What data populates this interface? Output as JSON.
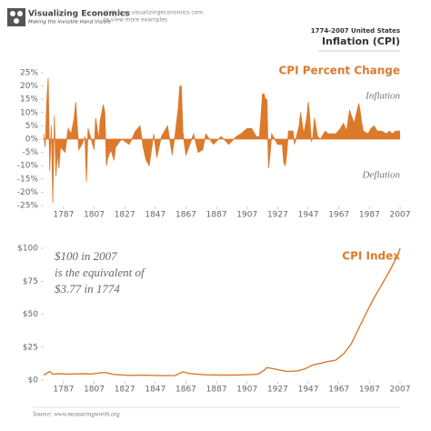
{
  "header": {
    "logo_title": "Visualizing Economics",
    "logo_subtitle": "Making the Invisible Hand Visible",
    "visit_line1": "Visit www.visualizingeconomics.com",
    "visit_line2": "to view more examples",
    "subtitle": "1774-2007 United States",
    "title": "Inflation (CPI)"
  },
  "chart_data": [
    {
      "type": "area",
      "title": "CPI Percent Change",
      "annotations": [
        "Inflation",
        "Deflation"
      ],
      "color": "#dc7a2c",
      "x": [
        1774,
        1775,
        1776,
        1777,
        1778,
        1779,
        1780,
        1781,
        1782,
        1783,
        1784,
        1785,
        1788,
        1790,
        1792,
        1794,
        1795,
        1796,
        1797,
        1799,
        1801,
        1802,
        1803,
        1805,
        1807,
        1808,
        1810,
        1811,
        1813,
        1814,
        1815,
        1816,
        1818,
        1820,
        1821,
        1825,
        1830,
        1834,
        1837,
        1839,
        1841,
        1843,
        1846,
        1848,
        1851,
        1853,
        1855,
        1858,
        1860,
        1862,
        1863,
        1864,
        1865,
        1866,
        1867,
        1869,
        1872,
        1875,
        1878,
        1880,
        1885,
        1890,
        1895,
        1900,
        1903,
        1907,
        1910,
        1913,
        1915,
        1916,
        1917,
        1918,
        1919,
        1920,
        1921,
        1922,
        1923,
        1927,
        1930,
        1931,
        1932,
        1933,
        1934,
        1937,
        1938,
        1941,
        1942,
        1943,
        1944,
        1946,
        1947,
        1948,
        1949,
        1950,
        1951,
        1953,
        1955,
        1958,
        1960,
        1965,
        1968,
        1970,
        1972,
        1974,
        1975,
        1977,
        1979,
        1980,
        1981,
        1982,
        1983,
        1986,
        1988,
        1990,
        1992,
        1995,
        1998,
        2000,
        2002,
        2004,
        2005,
        2007
      ],
      "values": [
        2,
        -3,
        14,
        23,
        -12,
        5,
        -24,
        9,
        -14,
        -5,
        -11,
        -3,
        -5,
        4,
        2,
        8,
        14,
        5,
        -4,
        -2,
        1,
        -16,
        4,
        0,
        -4,
        8,
        0,
        7,
        13,
        10,
        -10,
        -7,
        -4,
        -8,
        -3,
        0,
        -2,
        3,
        5,
        -3,
        -8,
        -10,
        2,
        -7,
        1,
        3,
        5,
        -6,
        2,
        12,
        20,
        20,
        3,
        -2,
        -6,
        -3,
        2,
        -5,
        -4,
        2,
        -2,
        1,
        -2,
        1,
        2,
        4,
        4,
        1,
        1,
        8,
        17,
        17,
        15,
        15,
        -11,
        -6,
        2,
        -2,
        -2,
        -9,
        -10,
        -5,
        3,
        3,
        -2,
        5,
        10,
        6,
        2,
        8,
        14,
        8,
        -1,
        1,
        8,
        1,
        0,
        3,
        2,
        2,
        4,
        6,
        3,
        11,
        9,
        6,
        11,
        13.5,
        10,
        6,
        3,
        2,
        4,
        5,
        3,
        3,
        2,
        3,
        2,
        3,
        3,
        3
      ],
      "xlim": [
        1774,
        2007
      ],
      "ylim": [
        -25,
        25
      ],
      "xticks": [
        1787,
        1807,
        1827,
        1847,
        1867,
        1887,
        1907,
        1927,
        1947,
        1967,
        1987,
        2007
      ],
      "yticks": [
        {
          "value": 25,
          "label": "25%"
        },
        {
          "value": 20,
          "label": "20%"
        },
        {
          "value": 15,
          "label": "15%"
        },
        {
          "value": 10,
          "label": "10%"
        },
        {
          "value": 5,
          "label": "5%"
        },
        {
          "value": 0,
          "label": "0%"
        },
        {
          "value": -5,
          "label": "-5%"
        },
        {
          "value": -10,
          "label": "-10%"
        },
        {
          "value": -15,
          "label": "-15%"
        },
        {
          "value": -20,
          "label": "-20%"
        },
        {
          "value": -25,
          "label": "-25%"
        }
      ]
    },
    {
      "type": "line",
      "title": "CPI Index",
      "annotations": [
        "$100 in 2007",
        "is the equivalent of",
        "$3.77 in 1774"
      ],
      "color": "#dc7a2c",
      "x": [
        1774,
        1778,
        1780,
        1785,
        1790,
        1800,
        1805,
        1814,
        1820,
        1830,
        1840,
        1850,
        1860,
        1865,
        1870,
        1880,
        1890,
        1900,
        1910,
        1914,
        1918,
        1920,
        1925,
        1933,
        1940,
        1945,
        1950,
        1955,
        1960,
        1965,
        1970,
        1975,
        1980,
        1985,
        1990,
        1995,
        2000,
        2005,
        2007
      ],
      "values": [
        3.77,
        6.5,
        4.5,
        4.8,
        4.5,
        4.8,
        4.6,
        5.8,
        4.3,
        3.6,
        3.7,
        3.4,
        3.5,
        6.2,
        4.9,
        4.0,
        3.8,
        3.8,
        4.2,
        4.5,
        7.3,
        9.5,
        8.4,
        6.5,
        7.0,
        8.6,
        11.5,
        12.7,
        14.1,
        15.1,
        19.8,
        27.4,
        39.3,
        51.2,
        62.4,
        72.3,
        82.4,
        93.6,
        100
      ],
      "xlim": [
        1774,
        2007
      ],
      "ylim": [
        0,
        100
      ],
      "xticks": [
        1787,
        1807,
        1827,
        1847,
        1867,
        1887,
        1907,
        1927,
        1947,
        1967,
        1987,
        2007
      ],
      "yticks": [
        {
          "value": 100,
          "label": "$100"
        },
        {
          "value": 75,
          "label": "$75"
        },
        {
          "value": 50,
          "label": "$50"
        },
        {
          "value": 25,
          "label": "$25"
        },
        {
          "value": 0,
          "label": "$0"
        }
      ]
    }
  ],
  "source": "Source: www.measuringworth.org"
}
